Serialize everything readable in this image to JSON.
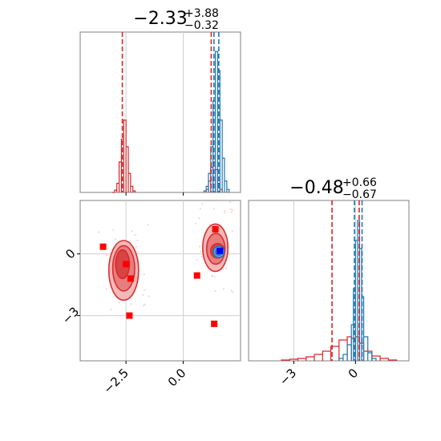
{
  "chart_data": [
    {
      "panel": "top-left",
      "type": "histogram",
      "title": {
        "value": "−2.33",
        "plus": "+3.88",
        "minus": "−0.32"
      },
      "xlim": [
        -4.5,
        2.5
      ],
      "grid": true,
      "series": [
        {
          "name": "",
          "color": "#d62728",
          "bins": [
            [
              -3.1,
              -3.0,
              0
            ],
            [
              -3.0,
              -2.9,
              3
            ],
            [
              -2.9,
              -2.8,
              12
            ],
            [
              -2.8,
              -2.7,
              40
            ],
            [
              -2.7,
              -2.6,
              70
            ],
            [
              -2.6,
              -2.5,
              95
            ],
            [
              -2.5,
              -2.4,
              60
            ],
            [
              -2.4,
              -2.3,
              25
            ],
            [
              -2.3,
              -2.2,
              8
            ],
            [
              -2.2,
              -2.1,
              2
            ],
            [
              1.0,
              1.1,
              4
            ],
            [
              1.1,
              1.2,
              15
            ],
            [
              1.2,
              1.3,
              33
            ],
            [
              1.3,
              1.4,
              40
            ],
            [
              1.4,
              1.5,
              30
            ],
            [
              1.5,
              1.6,
              12
            ],
            [
              1.6,
              1.7,
              4
            ]
          ]
        },
        {
          "name": "",
          "color": "#1f77b4",
          "bins": [
            [
              0.9,
              1.0,
              2
            ],
            [
              1.0,
              1.1,
              8
            ],
            [
              1.1,
              1.2,
              25
            ],
            [
              1.2,
              1.3,
              60
            ],
            [
              1.3,
              1.4,
              120
            ],
            [
              1.4,
              1.5,
              185
            ],
            [
              1.5,
              1.6,
              160
            ],
            [
              1.6,
              1.7,
              95
            ],
            [
              1.7,
              1.8,
              45
            ],
            [
              1.8,
              1.9,
              15
            ],
            [
              1.9,
              2.0,
              4
            ]
          ]
        }
      ],
      "vlines": [
        {
          "x": -2.66,
          "color": "#d62728"
        },
        {
          "x": 1.22,
          "color": "#d62728"
        },
        {
          "x": 1.34,
          "color": "#1f77b4"
        },
        {
          "x": 1.55,
          "color": "#1f77b4"
        }
      ],
      "ymax": 200
    },
    {
      "panel": "bottom-left",
      "type": "scatter-contour",
      "xlim": [
        -4.5,
        2.5
      ],
      "ylim": [
        -5.2,
        2.6
      ],
      "xticks": [
        -2.5,
        0.0
      ],
      "xtick_labels": [
        "−2.5",
        "0.0"
      ],
      "yticks": [
        0,
        -3
      ],
      "ytick_labels": [
        "0",
        "−3"
      ],
      "grid": true,
      "contours": [
        {
          "cx": -2.6,
          "cy": -0.8,
          "rx": 0.65,
          "ry": 1.45,
          "color": "#d62728",
          "fill": "#f4b5b5",
          "level": 1
        },
        {
          "cx": -2.6,
          "cy": -0.7,
          "rx": 0.48,
          "ry": 1.1,
          "color": "#d62728",
          "fill": "#e87a7a",
          "level": 2
        },
        {
          "cx": -2.65,
          "cy": -0.5,
          "rx": 0.3,
          "ry": 0.7,
          "color": "#d62728",
          "fill": "#d94040",
          "level": 3
        },
        {
          "cx": 1.4,
          "cy": 0.3,
          "rx": 0.55,
          "ry": 1.15,
          "color": "#d62728",
          "fill": "#f4b5b5",
          "level": 1
        },
        {
          "cx": 1.42,
          "cy": 0.25,
          "rx": 0.4,
          "ry": 0.75,
          "color": "#d62728",
          "fill": "#e87a7a",
          "level": 2
        },
        {
          "cx": 1.5,
          "cy": 0.15,
          "rx": 0.3,
          "ry": 0.35,
          "color": "#d62728",
          "fill": "#d94040",
          "level": 3
        },
        {
          "cx": 1.55,
          "cy": 0.1,
          "rx": 0.24,
          "ry": 0.28,
          "color": "#1f77b4",
          "fill": "#6fa8d6",
          "level": 4
        },
        {
          "cx": 1.55,
          "cy": 0.1,
          "rx": 0.14,
          "ry": 0.17,
          "color": "#1f77b4",
          "fill": "#3a84c4",
          "level": 5
        }
      ],
      "red_points": [
        {
          "x": -3.5,
          "y": 0.35
        },
        {
          "x": -2.5,
          "y": -0.5
        },
        {
          "x": -2.3,
          "y": -1.2
        },
        {
          "x": -2.35,
          "y": -3.0
        },
        {
          "x": 0.6,
          "y": -1.05
        },
        {
          "x": 1.4,
          "y": 1.2
        },
        {
          "x": 1.35,
          "y": -3.4
        }
      ],
      "blue_point": {
        "x": 1.6,
        "y": 0.15
      }
    },
    {
      "panel": "bottom-right",
      "type": "histogram",
      "title": {
        "value": "−0.48",
        "plus": "+0.66",
        "minus": "−0.67"
      },
      "xlim": [
        -5.2,
        2.6
      ],
      "xticks": [
        -3,
        0
      ],
      "xtick_labels": [
        "−3",
        "0"
      ],
      "grid": true,
      "series": [
        {
          "name": "",
          "color": "#d62728",
          "bins": [
            [
              -3.6,
              -3.2,
              1
            ],
            [
              -3.2,
              -2.8,
              2
            ],
            [
              -2.8,
              -2.4,
              3
            ],
            [
              -2.4,
              -2.0,
              5
            ],
            [
              -2.0,
              -1.6,
              8
            ],
            [
              -1.6,
              -1.2,
              12
            ],
            [
              -1.2,
              -0.8,
              18
            ],
            [
              -0.8,
              -0.4,
              26
            ],
            [
              -0.4,
              -0.2,
              30
            ],
            [
              -0.2,
              0.0,
              28
            ],
            [
              0.0,
              0.2,
              30
            ],
            [
              0.2,
              0.4,
              22
            ],
            [
              0.4,
              0.8,
              12
            ],
            [
              0.8,
              1.2,
              6
            ],
            [
              1.2,
              1.6,
              3
            ],
            [
              1.6,
              2.0,
              1
            ]
          ]
        },
        {
          "name": "",
          "color": "#1f77b4",
          "bins": [
            [
              -0.8,
              -0.6,
              3
            ],
            [
              -0.6,
              -0.4,
              8
            ],
            [
              -0.4,
              -0.2,
              20
            ],
            [
              -0.2,
              -0.1,
              45
            ],
            [
              -0.1,
              0.0,
              90
            ],
            [
              0.0,
              0.1,
              150
            ],
            [
              0.1,
              0.2,
              175
            ],
            [
              0.2,
              0.3,
              140
            ],
            [
              0.3,
              0.4,
              80
            ],
            [
              0.4,
              0.6,
              30
            ],
            [
              0.6,
              0.8,
              10
            ],
            [
              0.8,
              1.0,
              3
            ]
          ]
        }
      ],
      "vlines": [
        {
          "x": -1.14,
          "color": "#d62728"
        },
        {
          "x": 0.18,
          "color": "#d62728"
        },
        {
          "x": -0.05,
          "color": "#1f77b4"
        },
        {
          "x": 0.32,
          "color": "#1f77b4"
        }
      ],
      "ymax": 190
    }
  ]
}
